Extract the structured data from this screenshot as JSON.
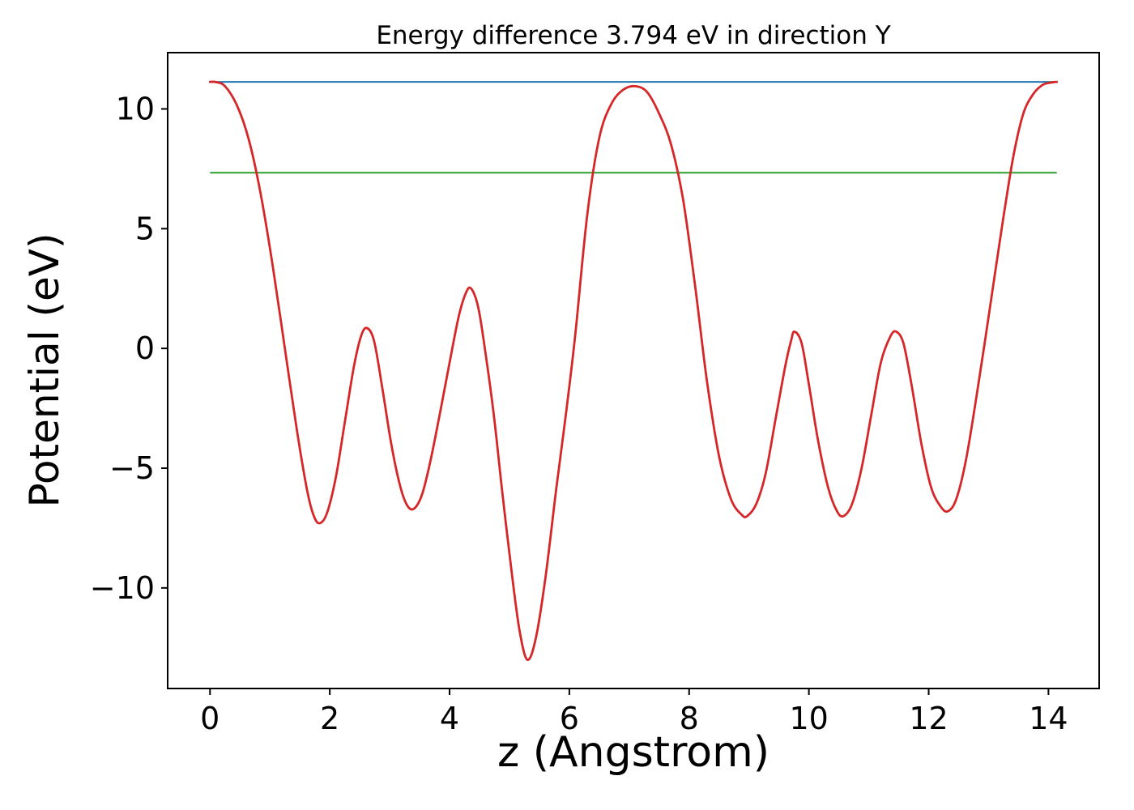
{
  "chart_data": {
    "type": "line",
    "title": "Energy difference 3.794 eV in direction Y",
    "xlabel": "z (Angstrom)",
    "ylabel": "Potential (eV)",
    "energy_difference_eV": 3.794,
    "direction": "Y",
    "xlim": [
      -0.707,
      14.847
    ],
    "ylim": [
      -14.2,
      12.35
    ],
    "xticks": [
      0,
      2,
      4,
      6,
      8,
      10,
      12,
      14
    ],
    "yticks": [
      -10,
      -5,
      0,
      5,
      10
    ],
    "grid": false,
    "legend": null,
    "background": "#ffffff",
    "axis_color": "#000000",
    "series": [
      {
        "id": "upper-level",
        "type": "hline",
        "color": "#1f77b4",
        "y": 11.13,
        "x_range": [
          0,
          14.14
        ]
      },
      {
        "id": "lower-level",
        "type": "hline",
        "color": "#2ca02c",
        "y": 7.336,
        "x_range": [
          0,
          14.14
        ]
      },
      {
        "id": "potential",
        "type": "curve",
        "color": "#d62728",
        "points": [
          [
            0.0,
            11.13
          ],
          [
            0.1,
            11.12
          ],
          [
            0.25,
            10.95
          ],
          [
            0.45,
            10.15
          ],
          [
            0.65,
            8.7
          ],
          [
            0.85,
            6.4
          ],
          [
            1.05,
            3.4
          ],
          [
            1.25,
            0.0
          ],
          [
            1.45,
            -3.4
          ],
          [
            1.62,
            -5.9
          ],
          [
            1.72,
            -6.9
          ],
          [
            1.82,
            -7.3
          ],
          [
            1.95,
            -6.9
          ],
          [
            2.1,
            -5.4
          ],
          [
            2.25,
            -3.1
          ],
          [
            2.4,
            -0.8
          ],
          [
            2.52,
            0.5
          ],
          [
            2.62,
            0.85
          ],
          [
            2.74,
            0.3
          ],
          [
            2.88,
            -1.7
          ],
          [
            3.02,
            -3.9
          ],
          [
            3.16,
            -5.6
          ],
          [
            3.28,
            -6.5
          ],
          [
            3.4,
            -6.7
          ],
          [
            3.54,
            -6.1
          ],
          [
            3.68,
            -4.7
          ],
          [
            3.84,
            -2.7
          ],
          [
            4.0,
            -0.6
          ],
          [
            4.15,
            1.3
          ],
          [
            4.27,
            2.3
          ],
          [
            4.36,
            2.5
          ],
          [
            4.48,
            1.7
          ],
          [
            4.6,
            -0.2
          ],
          [
            4.74,
            -2.8
          ],
          [
            4.88,
            -6.0
          ],
          [
            5.04,
            -9.4
          ],
          [
            5.17,
            -11.8
          ],
          [
            5.3,
            -13.0
          ],
          [
            5.44,
            -12.1
          ],
          [
            5.6,
            -9.6
          ],
          [
            5.78,
            -5.9
          ],
          [
            5.95,
            -2.6
          ],
          [
            6.1,
            0.6
          ],
          [
            6.3,
            5.6
          ],
          [
            6.5,
            8.8
          ],
          [
            6.7,
            10.2
          ],
          [
            6.9,
            10.8
          ],
          [
            7.1,
            10.95
          ],
          [
            7.3,
            10.7
          ],
          [
            7.5,
            9.8
          ],
          [
            7.7,
            8.5
          ],
          [
            7.9,
            6.2
          ],
          [
            8.1,
            2.6
          ],
          [
            8.3,
            -1.4
          ],
          [
            8.5,
            -4.5
          ],
          [
            8.7,
            -6.3
          ],
          [
            8.88,
            -6.95
          ],
          [
            8.97,
            -7.0
          ],
          [
            9.12,
            -6.5
          ],
          [
            9.28,
            -5.2
          ],
          [
            9.44,
            -3.0
          ],
          [
            9.6,
            -0.8
          ],
          [
            9.7,
            0.3
          ],
          [
            9.76,
            0.7
          ],
          [
            9.88,
            0.2
          ],
          [
            10.0,
            -1.5
          ],
          [
            10.15,
            -3.8
          ],
          [
            10.32,
            -5.8
          ],
          [
            10.47,
            -6.8
          ],
          [
            10.58,
            -7.0
          ],
          [
            10.72,
            -6.5
          ],
          [
            10.88,
            -5.0
          ],
          [
            11.04,
            -2.8
          ],
          [
            11.2,
            -0.6
          ],
          [
            11.36,
            0.5
          ],
          [
            11.46,
            0.7
          ],
          [
            11.58,
            0.2
          ],
          [
            11.72,
            -1.6
          ],
          [
            11.88,
            -4.0
          ],
          [
            12.04,
            -5.8
          ],
          [
            12.2,
            -6.6
          ],
          [
            12.32,
            -6.8
          ],
          [
            12.46,
            -6.3
          ],
          [
            12.62,
            -4.7
          ],
          [
            12.78,
            -2.3
          ],
          [
            12.94,
            0.3
          ],
          [
            13.1,
            3.0
          ],
          [
            13.25,
            5.5
          ],
          [
            13.42,
            8.1
          ],
          [
            13.58,
            9.8
          ],
          [
            13.74,
            10.6
          ],
          [
            13.9,
            11.0
          ],
          [
            14.04,
            11.1
          ],
          [
            14.14,
            11.13
          ]
        ]
      }
    ]
  }
}
